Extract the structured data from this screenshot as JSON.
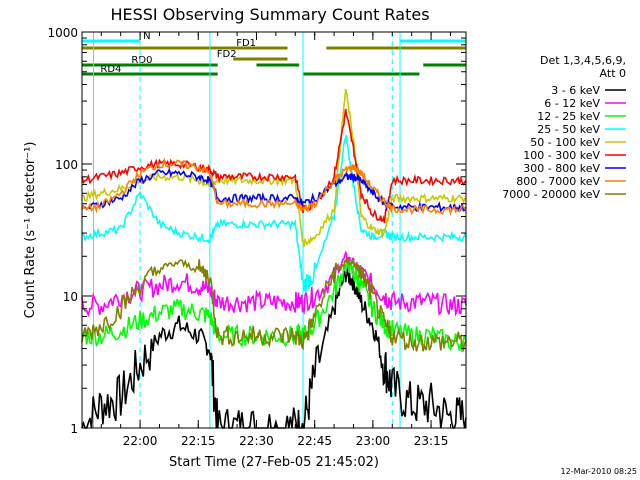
{
  "chart_data": {
    "type": "line",
    "title": "HESSI Observing Summary Count Rates",
    "xlabel": "Start Time (27-Feb-05 21:45:02)",
    "ylabel": "Count Rate (s⁻¹ detector⁻¹)",
    "y_scale": "log",
    "ylim": [
      1,
      1000
    ],
    "xlim": [
      "21:45:02",
      "23:24"
    ],
    "grid": false,
    "x_ticks": [
      "22:00",
      "22:15",
      "22:30",
      "22:45",
      "23:00",
      "23:15"
    ],
    "y_ticks": [
      "1",
      "10",
      "100",
      "1000"
    ],
    "legend_title": [
      "Det 1,3,4,5,6,9,",
      "Att 0"
    ],
    "legend_position": "right",
    "footer": "12-Mar-2010 08:25",
    "x": [
      "21:45",
      "21:50",
      "21:55",
      "22:00",
      "22:05",
      "22:10",
      "22:15",
      "22:18",
      "22:20",
      "22:25",
      "22:30",
      "22:35",
      "22:40",
      "22:42",
      "22:45",
      "22:50",
      "22:53",
      "22:55",
      "22:57",
      "23:00",
      "23:03",
      "23:05",
      "23:10",
      "23:15",
      "23:20",
      "23:24"
    ],
    "series": [
      {
        "name": "3 - 6 keV",
        "color": "#000000",
        "values": [
          1,
          1.5,
          1.7,
          3,
          5,
          6,
          5,
          4,
          1,
          1,
          1,
          1,
          1,
          1,
          2.5,
          8,
          15,
          13,
          9,
          6,
          3,
          2,
          1.5,
          1.5,
          1.2,
          1.2
        ]
      },
      {
        "name": "6 - 12 keV",
        "color": "#ff00ff",
        "values": [
          8.5,
          8.5,
          10,
          11,
          12,
          13,
          12,
          11,
          9,
          9,
          9,
          9,
          9,
          9,
          10,
          14,
          20,
          18,
          15,
          12,
          10,
          9,
          9,
          9,
          8.5,
          8.5
        ]
      },
      {
        "name": "12 - 25 keV",
        "color": "#00ff00",
        "values": [
          5,
          5,
          5.5,
          6.5,
          7.5,
          8,
          7.5,
          7,
          5,
          5,
          5,
          5,
          5,
          5,
          6,
          11,
          17,
          15,
          12,
          8,
          6,
          5.5,
          5,
          5,
          4.5,
          4.5
        ]
      },
      {
        "name": "25 - 50 keV",
        "color": "#00ffff",
        "values": [
          28,
          30,
          32,
          60,
          35,
          30,
          28,
          27,
          35,
          35,
          35,
          35,
          35,
          12,
          15,
          40,
          170,
          70,
          32,
          28,
          30,
          28,
          28,
          28,
          28,
          28
        ]
      },
      {
        "name": "50 - 100 keV",
        "color": "#c8c800",
        "values": [
          55,
          60,
          65,
          75,
          80,
          80,
          75,
          70,
          75,
          75,
          75,
          75,
          75,
          25,
          28,
          45,
          370,
          150,
          40,
          32,
          30,
          55,
          55,
          55,
          55,
          55
        ]
      },
      {
        "name": "100 - 300 keV",
        "color": "#ff0000",
        "values": [
          75,
          80,
          85,
          95,
          100,
          100,
          95,
          90,
          80,
          80,
          80,
          80,
          80,
          45,
          50,
          80,
          250,
          130,
          60,
          42,
          38,
          75,
          75,
          75,
          75,
          75
        ]
      },
      {
        "name": "300 - 800 keV",
        "color": "#0000ff",
        "values": [
          45,
          50,
          55,
          75,
          85,
          85,
          80,
          75,
          55,
          55,
          55,
          55,
          55,
          50,
          55,
          70,
          80,
          80,
          75,
          60,
          50,
          48,
          47,
          47,
          47,
          47
        ]
      },
      {
        "name": "800 - 7000 keV",
        "color": "#ff8000",
        "values": [
          45,
          48,
          60,
          85,
          100,
          100,
          95,
          85,
          50,
          50,
          50,
          50,
          50,
          45,
          50,
          75,
          90,
          95,
          85,
          65,
          52,
          46,
          45,
          45,
          45,
          45
        ]
      },
      {
        "name": "7000 - 20000 keV",
        "color": "#808000",
        "values": [
          5,
          6,
          8,
          12,
          16,
          18,
          16,
          14,
          5,
          5,
          5,
          5,
          5,
          4.5,
          7,
          15,
          18,
          18,
          15,
          10,
          6,
          5,
          4.5,
          4.5,
          4.5,
          4.5
        ]
      }
    ],
    "status_bars": [
      {
        "label": "N",
        "color": "#00ffff",
        "segments": [
          [
            "21:45",
            "22:00"
          ],
          [
            "23:07",
            "23:24"
          ]
        ]
      },
      {
        "label": "FD1",
        "color": "#808000",
        "segments": [
          [
            "21:45",
            "22:38"
          ],
          [
            "22:48",
            "23:24"
          ]
        ]
      },
      {
        "label": "FD2",
        "color": "#808000",
        "segments": [
          [
            "22:24",
            "22:38"
          ]
        ]
      },
      {
        "label": "RD0",
        "color": "#008000",
        "segments": [
          [
            "21:45",
            "22:20"
          ],
          [
            "22:30",
            "22:41"
          ],
          [
            "23:13",
            "23:24"
          ]
        ]
      },
      {
        "label": "RD4",
        "color": "#008000",
        "segments": [
          [
            "21:45",
            "22:20"
          ],
          [
            "22:42",
            "23:12"
          ]
        ]
      }
    ],
    "vlines_solid": [
      "21:48",
      "22:18",
      "22:42",
      "23:07",
      "23:24"
    ],
    "vlines_dashed": [
      "22:00",
      "23:05",
      "23:24"
    ]
  }
}
